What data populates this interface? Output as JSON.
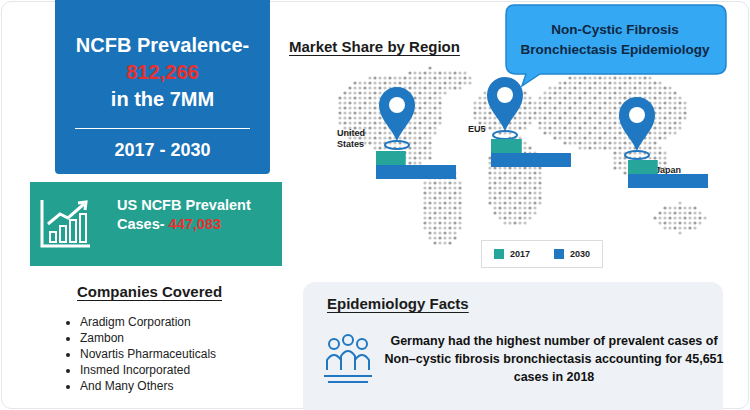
{
  "header": {
    "label": "NCFB Prevalence-",
    "value": "812,266",
    "suffix": "in the 7MM",
    "period": "2017 - 2030"
  },
  "us_cases": {
    "label": "US NCFB Prevalent Cases-",
    "value": "447,083"
  },
  "title": "Non-Cystic Fibrosis Bronchiectasis Epidemiology",
  "chart_data": {
    "type": "bar",
    "title": "Market Share by Region",
    "orientation": "horizontal",
    "categories": [
      "United States",
      "EU5",
      "Japan"
    ],
    "series": [
      {
        "name": "2017",
        "color": "#26a69a",
        "values": [
          29,
          30,
          29
        ]
      },
      {
        "name": "2030",
        "color": "#1f78c1",
        "values": [
          78,
          78,
          78
        ]
      }
    ],
    "xlim": [
      0,
      78
    ],
    "xticks": [],
    "tick_labels": false,
    "legend": "bottom"
  },
  "companies": {
    "title": "Companies Covered",
    "items": [
      "Aradigm Corporation",
      "Zambon",
      "Novartis Pharmaceuticals",
      "Insmed Incorporated",
      "And Many Others"
    ]
  },
  "facts": {
    "title": "Epidemiology Facts",
    "text": "Germany had the highest number of prevalent cases of Non–cystic fibrosis bronchiectasis accounting for 45,651 cases in 2018"
  }
}
